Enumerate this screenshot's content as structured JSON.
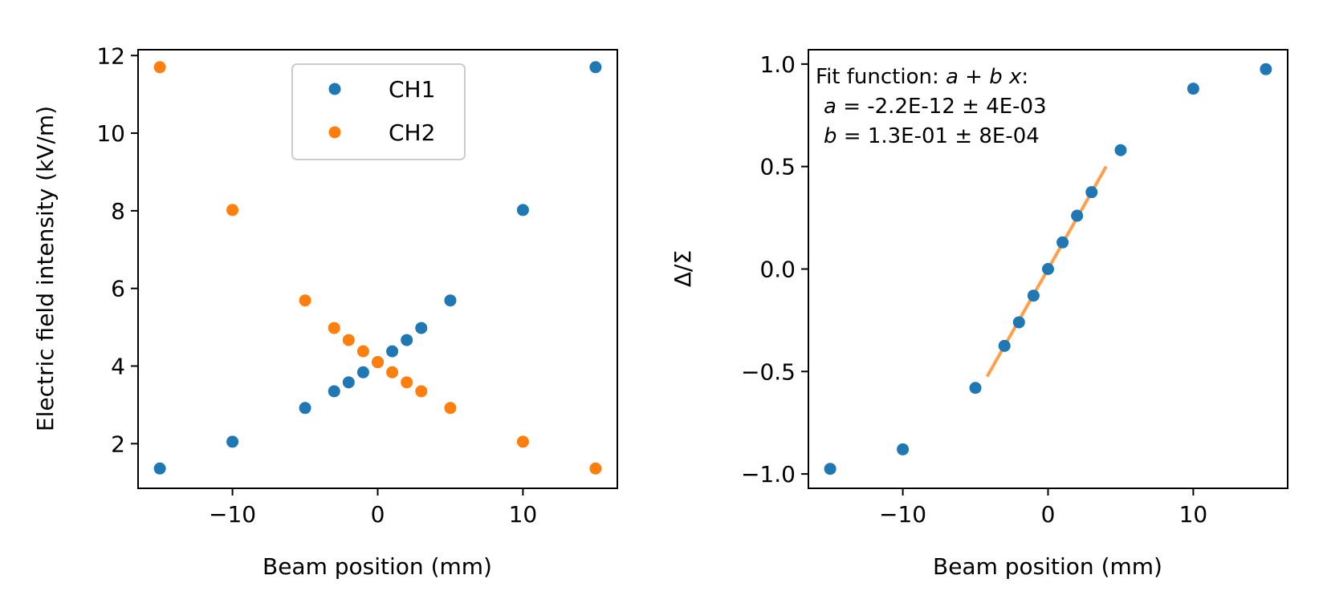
{
  "chart_data": [
    {
      "type": "scatter",
      "xlabel": "Beam position (mm)",
      "ylabel": "Electric field intensity (kV/m)",
      "xlim": [
        -16.5,
        16.5
      ],
      "ylim": [
        0.85,
        12.15
      ],
      "x_ticks": [
        -10,
        0,
        10
      ],
      "x_tick_labels": [
        "−10",
        "0",
        "10"
      ],
      "y_ticks": [
        2,
        4,
        6,
        8,
        10,
        12
      ],
      "y_tick_labels": [
        "2",
        "4",
        "6",
        "8",
        "10",
        "12"
      ],
      "legend_position": "upper-center",
      "series": [
        {
          "name": "CH1",
          "color": "#1f77b4",
          "x": [
            -15,
            -10,
            -5,
            -3,
            -2,
            -1,
            0,
            1,
            2,
            3,
            5,
            10,
            15
          ],
          "y": [
            1.36,
            2.05,
            2.92,
            3.35,
            3.58,
            3.84,
            4.1,
            4.38,
            4.67,
            4.98,
            5.69,
            8.02,
            11.7
          ]
        },
        {
          "name": "CH2",
          "color": "#ff7f0e",
          "x": [
            -15,
            -10,
            -5,
            -3,
            -2,
            -1,
            0,
            1,
            2,
            3,
            5,
            10,
            15
          ],
          "y": [
            11.7,
            8.02,
            5.69,
            4.98,
            4.67,
            4.38,
            4.1,
            3.84,
            3.58,
            3.35,
            2.92,
            2.05,
            1.36
          ]
        }
      ]
    },
    {
      "type": "scatter",
      "xlabel": "Beam position (mm)",
      "ylabel": "Δ/Σ",
      "xlim": [
        -16.5,
        16.5
      ],
      "ylim": [
        -1.07,
        1.07
      ],
      "x_ticks": [
        -10,
        0,
        10
      ],
      "x_tick_labels": [
        "−10",
        "0",
        "10"
      ],
      "y_ticks": [
        -1.0,
        -0.5,
        0.0,
        0.5,
        1.0
      ],
      "y_tick_labels": [
        "−1.0",
        "−0.5",
        "0.0",
        "0.5",
        "1.0"
      ],
      "annotation": {
        "line1_prefix": "Fit function: ",
        "line1_math": "a + b x",
        "line1_suffix": ":",
        "line2_var": "a",
        "line2_value": " = -2.2E-12 ± 4E-03",
        "line3_var": "b",
        "line3_value": " = 1.3E-01 ± 8E-04"
      },
      "series": [
        {
          "color": "#1f77b4",
          "x": [
            -15,
            -10,
            -5,
            -3,
            -2,
            -1,
            0,
            1,
            2,
            3,
            5,
            10,
            15
          ],
          "y": [
            -0.975,
            -0.88,
            -0.58,
            -0.375,
            -0.26,
            -0.13,
            0.0,
            0.13,
            0.26,
            0.375,
            0.58,
            0.88,
            0.975
          ]
        }
      ],
      "fit_line": {
        "color": "#ff7f0e",
        "x": [
          -4.2,
          4.0
        ],
        "intercept": 0.0,
        "slope": 0.125
      }
    }
  ]
}
